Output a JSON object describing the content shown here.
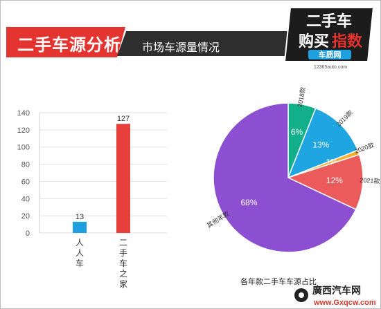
{
  "header": {
    "title": "二手车源分析",
    "subtitle": "市场车源量情况",
    "colors": {
      "accent": "#e3342f",
      "dark": "#2e2e2e"
    }
  },
  "logo": {
    "line1": "二手车",
    "line2_a": "购买",
    "line2_b": "指数",
    "brand": "车质网",
    "url": "12365auto.com"
  },
  "watermark": {
    "name": "廣西汽车网",
    "url": "www.Gxqcw.com"
  },
  "chart_data": [
    {
      "type": "bar",
      "categories": [
        "人人车",
        "二手车之家"
      ],
      "values": [
        13,
        127
      ],
      "colors": [
        "#1e9fe0",
        "#e8403c"
      ],
      "ylim": [
        0,
        140
      ],
      "yticks": [
        0,
        20,
        40,
        60,
        80,
        100,
        120,
        140
      ],
      "grid": true,
      "data_labels": true
    },
    {
      "type": "pie",
      "title": "各年款二手车车源占比",
      "slices": [
        {
          "label": "2018款",
          "value": 6,
          "display": "6%",
          "color": "#12b08a"
        },
        {
          "label": "2019款",
          "value": 13,
          "display": "13%",
          "color": "#1ea5e2"
        },
        {
          "label": "2020款",
          "value": 1,
          "display": "1%",
          "color": "#f3b02c"
        },
        {
          "label": "2021款",
          "value": 12,
          "display": "12%",
          "color": "#ec5b5b"
        },
        {
          "label": "其他年款",
          "value": 68,
          "display": "68%",
          "color": "#8c4fd2"
        }
      ]
    }
  ]
}
